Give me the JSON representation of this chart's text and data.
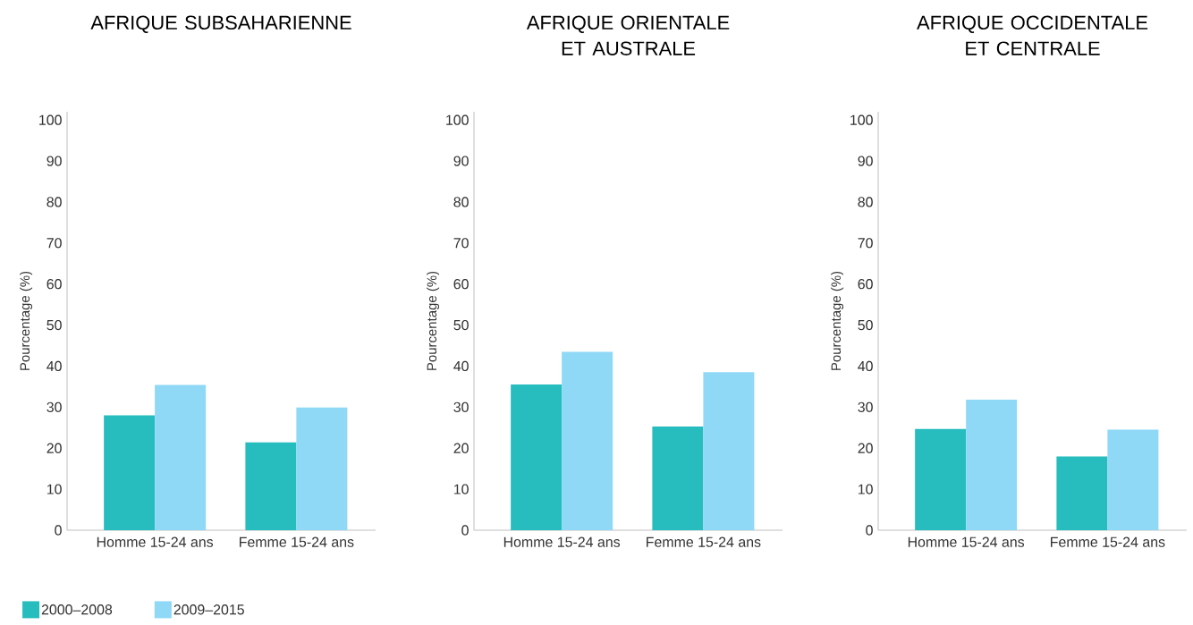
{
  "chart_data": [
    {
      "type": "bar",
      "title": "AFRIQUE SUBSAHARIENNE",
      "ylabel": "Pourcentage (%)",
      "categories": [
        "Homme 15-24 ans",
        "Femme 15-24 ans"
      ],
      "ylim": [
        0,
        102
      ],
      "yticks": [
        0,
        10,
        20,
        30,
        40,
        50,
        60,
        70,
        80,
        90,
        100
      ],
      "legend": "bottom",
      "series": [
        {
          "name": "2000–2008",
          "color": "#27bdbe",
          "values": [
            28.0,
            21.4
          ]
        },
        {
          "name": "2009–2015",
          "color": "#8fd8f6",
          "values": [
            35.4,
            29.9
          ]
        }
      ]
    },
    {
      "type": "bar",
      "title": "AFRIQUE ORIENTALE ET AUSTRALE",
      "ylabel": "Pourcentage (%)",
      "categories": [
        "Homme 15-24 ans",
        "Femme 15-24 ans"
      ],
      "ylim": [
        0,
        102
      ],
      "yticks": [
        0,
        10,
        20,
        30,
        40,
        50,
        60,
        70,
        80,
        90,
        100
      ],
      "series": [
        {
          "color": "#27bdbe",
          "values": [
            35.5,
            25.3
          ]
        },
        {
          "color": "#8fd8f6",
          "values": [
            43.5,
            38.5
          ]
        }
      ]
    },
    {
      "type": "bar",
      "title": "AFRIQUE OCCIDENTALE ET CENTRALE",
      "ylabel": "Pourcentage (%)",
      "categories": [
        "Homme 15-24 ans",
        "Femme 15-24 ans"
      ],
      "ylim": [
        0,
        102
      ],
      "yticks": [
        0,
        10,
        20,
        30,
        40,
        50,
        60,
        70,
        80,
        90,
        100
      ],
      "series": [
        {
          "color": "#27bdbe",
          "values": [
            24.7,
            18.0
          ]
        },
        {
          "color": "#8fd8f6",
          "values": [
            31.8,
            24.5
          ]
        }
      ]
    }
  ]
}
